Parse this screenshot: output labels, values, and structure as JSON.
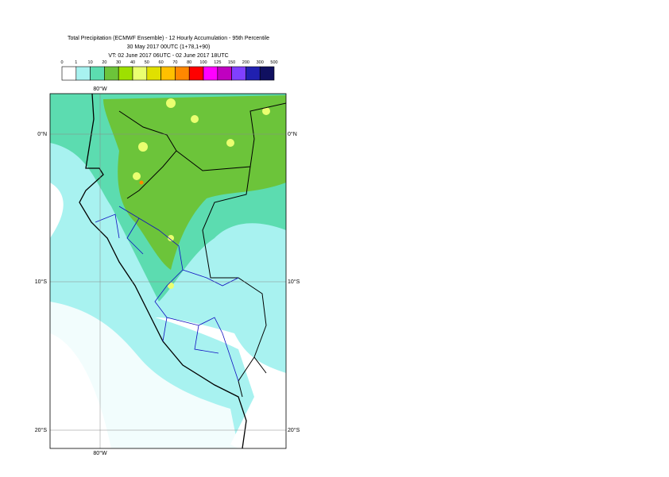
{
  "header": {
    "lines": [
      "Total Precipitation (ECMWF Ensemble) - 12 Hourly Accumulation - 95th Percentile",
      "30 May 2017 00UTC (1+78,1+90)",
      "VT: 02 June 2017 06UTC - 02 June 2017 18UTC"
    ]
  },
  "legend": {
    "ticks": [
      0,
      1,
      10,
      20,
      30,
      40,
      50,
      60,
      70,
      80,
      100,
      125,
      150,
      200,
      300,
      500
    ],
    "colors": [
      "#ffffff",
      "#a8f2f0",
      "#5cdcb0",
      "#6cc43a",
      "#9ee000",
      "#eaff70",
      "#e0e000",
      "#ffc000",
      "#ff8800",
      "#ff0000",
      "#ff00ff",
      "#c000c0",
      "#8040ff",
      "#2020b0",
      "#101060"
    ]
  },
  "map": {
    "lon_label": "80°W",
    "lat_labels": [
      "0°N",
      "10°S",
      "20°S"
    ]
  }
}
